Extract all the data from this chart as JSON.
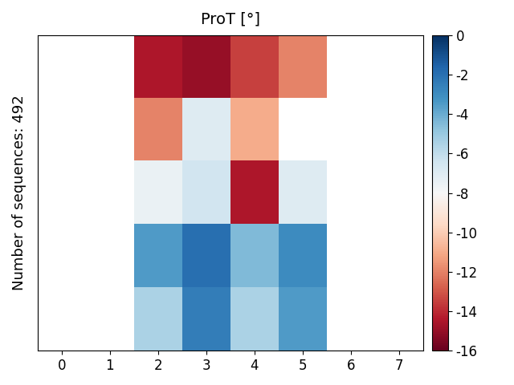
{
  "title": "ProT [°]",
  "ylabel": "Number of sequences: 492",
  "colormap": "RdBu",
  "vmin": -16,
  "vmax": 0,
  "xticks": [
    0,
    1,
    2,
    3,
    4,
    5,
    6,
    7
  ],
  "heatmap_data": [
    [
      null,
      null,
      -14.5,
      -15.0,
      -13.5,
      -12.0,
      null,
      null
    ],
    [
      null,
      null,
      -12.0,
      -7.0,
      -11.0,
      null,
      null,
      null
    ],
    [
      null,
      null,
      -7.5,
      -6.5,
      -14.5,
      -7.0,
      null,
      null
    ],
    [
      null,
      null,
      -3.5,
      -2.0,
      -4.5,
      -3.0,
      null,
      null
    ],
    [
      null,
      null,
      -5.5,
      -2.5,
      -5.5,
      -3.5,
      null,
      null
    ]
  ],
  "figsize": [
    6.4,
    4.8
  ],
  "dpi": 100,
  "title_fontsize": 14,
  "label_fontsize": 13,
  "tick_fontsize": 12,
  "colorbar_ticks": [
    0,
    -2,
    -4,
    -6,
    -8,
    -10,
    -12,
    -14,
    -16
  ]
}
